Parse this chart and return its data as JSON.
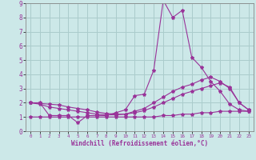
{
  "xlabel": "Windchill (Refroidissement éolien,°C)",
  "background_color": "#cce8e8",
  "grid_color": "#aacccc",
  "line_color": "#993399",
  "x_values": [
    0,
    1,
    2,
    3,
    4,
    5,
    6,
    7,
    8,
    9,
    10,
    11,
    12,
    13,
    14,
    15,
    16,
    17,
    18,
    19,
    20,
    21,
    22,
    23
  ],
  "series1": [
    2.0,
    2.0,
    1.1,
    1.1,
    1.1,
    0.6,
    1.1,
    1.1,
    1.1,
    1.3,
    1.5,
    2.5,
    2.6,
    4.3,
    9.2,
    8.0,
    8.5,
    5.2,
    4.5,
    3.5,
    2.8,
    1.9,
    1.5,
    1.4
  ],
  "series2": [
    2.0,
    1.9,
    1.7,
    1.6,
    1.5,
    1.4,
    1.3,
    1.2,
    1.15,
    1.15,
    1.2,
    1.4,
    1.6,
    2.0,
    2.4,
    2.8,
    3.1,
    3.3,
    3.6,
    3.8,
    3.5,
    3.0,
    2.0,
    1.5
  ],
  "series3": [
    2.0,
    1.95,
    1.9,
    1.85,
    1.7,
    1.6,
    1.5,
    1.35,
    1.25,
    1.2,
    1.2,
    1.3,
    1.45,
    1.7,
    2.0,
    2.3,
    2.6,
    2.8,
    3.0,
    3.2,
    3.4,
    3.1,
    2.0,
    1.5
  ],
  "series4": [
    1.0,
    1.0,
    1.0,
    1.0,
    1.0,
    1.0,
    1.0,
    1.0,
    1.0,
    1.0,
    1.0,
    1.0,
    1.0,
    1.0,
    1.1,
    1.1,
    1.2,
    1.2,
    1.3,
    1.3,
    1.4,
    1.4,
    1.4,
    1.4
  ],
  "ylim": [
    0,
    9
  ],
  "xlim": [
    -0.5,
    23.5
  ]
}
